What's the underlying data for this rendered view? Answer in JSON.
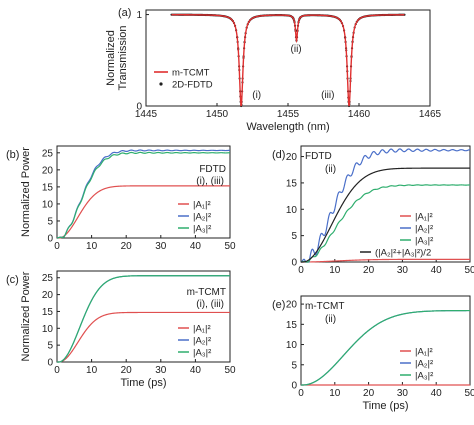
{
  "chart_data": [
    {
      "panel": "(a)",
      "type": "line",
      "xlabel": "Wavelength (nm)",
      "ylabel": "Normalized Transmission",
      "xlim": [
        1445,
        1465
      ],
      "ylim": [
        0,
        1.05
      ],
      "xticks": [
        1445,
        1450,
        1455,
        1460,
        1465
      ],
      "yticks": [
        0,
        1
      ],
      "annotations": [
        "(i)",
        "(ii)",
        "(iii)"
      ],
      "resonances": [
        {
          "label": "(i)",
          "x": 1451.7,
          "min": 0.0
        },
        {
          "label": "(ii)",
          "x": 1455.6,
          "min": 0.72
        },
        {
          "label": "(iii)",
          "x": 1459.3,
          "min": 0.0
        }
      ],
      "legend_position": "bottom-left",
      "series": [
        {
          "name": "m-TCMT",
          "color": "#e03030",
          "style": "line"
        },
        {
          "name": "2D-FDTD",
          "color": "#202020",
          "style": "dots"
        }
      ]
    },
    {
      "panel": "(b)",
      "type": "line",
      "xlabel": "",
      "ylabel": "Normalized Power",
      "xlim": [
        0,
        50
      ],
      "ylim": [
        0,
        27
      ],
      "xticks": [
        0,
        10,
        20,
        30,
        40,
        50
      ],
      "yticks": [
        0,
        5,
        10,
        15,
        20,
        25
      ],
      "annotations": [
        "FDTD",
        "(i), (iii)"
      ],
      "legend_position": "bottom-right",
      "series": [
        {
          "name": "|A₁|²",
          "color": "#e05050",
          "final": 15.3,
          "tau": 5.5,
          "ripple": 0
        },
        {
          "name": "|A₂|²",
          "color": "#4a6fc9",
          "final": 25.7,
          "tau": 6.0,
          "ripple": 0.5
        },
        {
          "name": "|A₃|²",
          "color": "#2fae6e",
          "final": 25.0,
          "tau": 6.0,
          "ripple": 0.5
        }
      ]
    },
    {
      "panel": "(c)",
      "type": "line",
      "xlabel": "Time (ps)",
      "ylabel": "Normalized Power",
      "xlim": [
        0,
        50
      ],
      "ylim": [
        0,
        27
      ],
      "xticks": [
        0,
        10,
        20,
        30,
        40,
        50
      ],
      "yticks": [
        0,
        5,
        10,
        15,
        20,
        25
      ],
      "annotations": [
        "m-TCMT",
        "(i), (iii)"
      ],
      "legend_position": "bottom-right",
      "series": [
        {
          "name": "|A₁|²",
          "color": "#e05050",
          "final": 14.7,
          "tau": 5.5,
          "ripple": 0
        },
        {
          "name": "|A₂|²",
          "color": "#4a6fc9",
          "final": 25.6,
          "tau": 6.0,
          "ripple": 0
        },
        {
          "name": "|A₃|²",
          "color": "#2fae6e",
          "final": 25.6,
          "tau": 6.0,
          "ripple": 0
        }
      ]
    },
    {
      "panel": "(d)",
      "type": "line",
      "xlabel": "",
      "ylabel": "",
      "xlim": [
        0,
        50
      ],
      "ylim": [
        0,
        22
      ],
      "xticks": [
        0,
        10,
        20,
        30,
        40,
        50
      ],
      "yticks": [
        0,
        5,
        10,
        15,
        20
      ],
      "annotations": [
        "FDTD",
        "(ii)"
      ],
      "legend_position": "bottom-right",
      "series": [
        {
          "name": "|A₁|²",
          "color": "#e05050",
          "final": 0.5,
          "tau": 10,
          "ripple": 0
        },
        {
          "name": "|A₂|²",
          "color": "#4a6fc9",
          "final": 21.2,
          "tau": 8.0,
          "ripple": 1.4
        },
        {
          "name": "|A₃|²",
          "color": "#2fae6e",
          "final": 14.6,
          "tau": 9.0,
          "ripple": 0.3
        },
        {
          "name": "(|A₂|²+|A₃|²)/2",
          "color": "#222222",
          "final": 17.8,
          "tau": 8.5,
          "ripple": 0
        }
      ]
    },
    {
      "panel": "(e)",
      "type": "line",
      "xlabel": "Time (ps)",
      "ylabel": "",
      "xlim": [
        0,
        50
      ],
      "ylim": [
        0,
        22
      ],
      "xticks": [
        0,
        10,
        20,
        30,
        40,
        50
      ],
      "yticks": [
        0,
        5,
        10,
        15,
        20
      ],
      "annotations": [
        "m-TCMT",
        "(ii)"
      ],
      "legend_position": "bottom-right",
      "series": [
        {
          "name": "|A₁|²",
          "color": "#e05050",
          "final": 0.0,
          "tau": 10,
          "ripple": 0
        },
        {
          "name": "|A₂|²",
          "color": "#4a6fc9",
          "final": 18.4,
          "tau": 12.0,
          "ripple": 0
        },
        {
          "name": "|A₃|²",
          "color": "#2fae6e",
          "final": 18.4,
          "tau": 12.0,
          "ripple": 0
        }
      ]
    }
  ]
}
